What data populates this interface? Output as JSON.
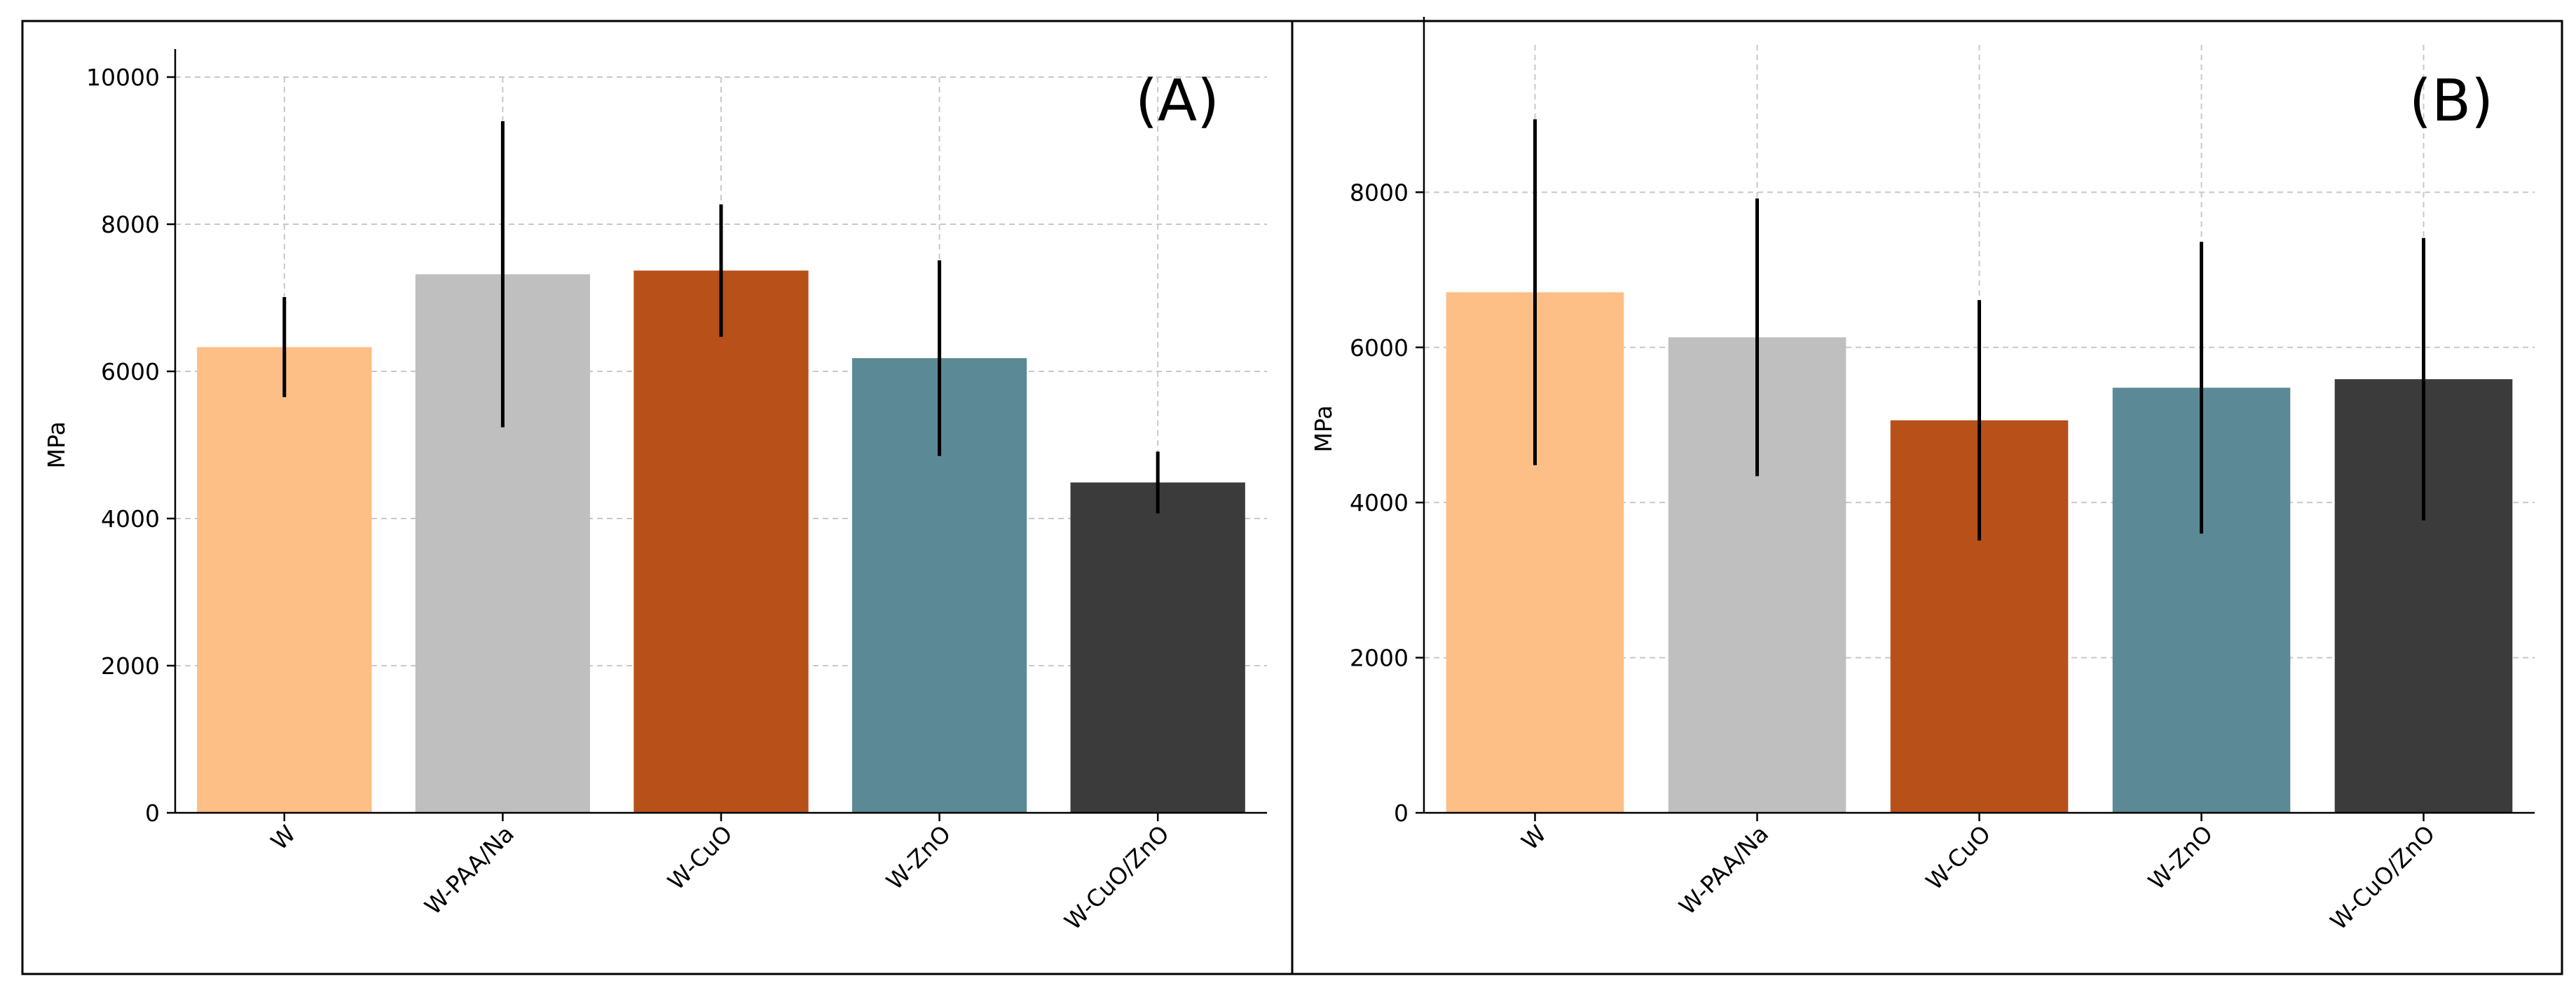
{
  "chart_data": [
    {
      "type": "bar",
      "panel_label": "(A)",
      "title": "",
      "xlabel": "",
      "ylabel": "MPa",
      "ylim": [
        0,
        10000
      ],
      "yticks": [
        0,
        2000,
        4000,
        6000,
        8000,
        10000
      ],
      "grid": true,
      "categories": [
        "W",
        "W-PAA/Na",
        "W-CuO",
        "W-ZnO",
        "W-CuO/ZnO"
      ],
      "values": [
        6330,
        7320,
        7370,
        6180,
        4490
      ],
      "errors": [
        680,
        2080,
        900,
        1330,
        420
      ],
      "colors": [
        "#fdbf85",
        "#bfbfbf",
        "#b8501a",
        "#5b8a96",
        "#3b3b3b"
      ]
    },
    {
      "type": "bar",
      "panel_label": "(B)",
      "title": "",
      "xlabel": "",
      "ylabel": "MPa",
      "ylim": [
        0,
        9900
      ],
      "yticks": [
        0,
        2000,
        4000,
        6000,
        8000
      ],
      "grid": true,
      "categories": [
        "W",
        "W-PAA/Na",
        "W-CuO",
        "W-ZnO",
        "W-CuO/ZnO"
      ],
      "values": [
        6710,
        6130,
        5060,
        5480,
        5590
      ],
      "errors": [
        2230,
        1790,
        1550,
        1880,
        1820
      ],
      "colors": [
        "#fdbf85",
        "#bfbfbf",
        "#b8501a",
        "#5b8a96",
        "#3b3b3b"
      ]
    }
  ]
}
